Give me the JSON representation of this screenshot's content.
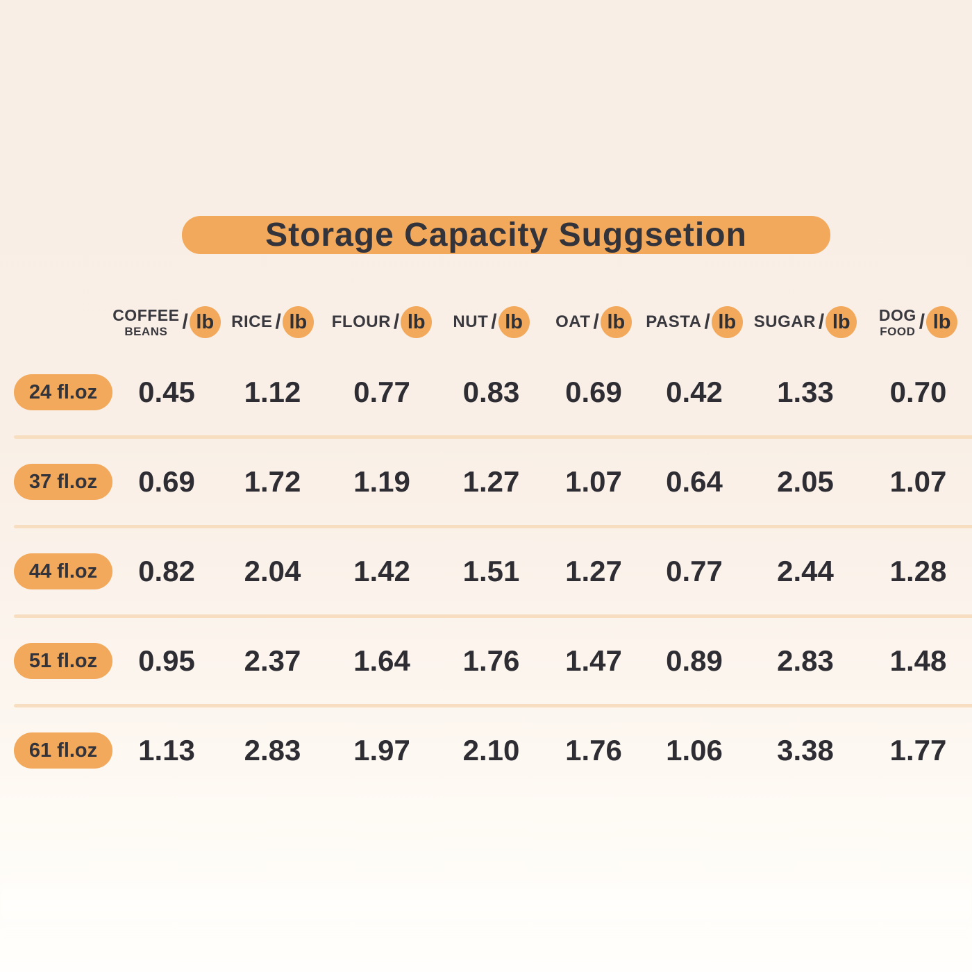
{
  "title": "Storage Capacity Suggsetion",
  "table": {
    "unit": "lb",
    "columns": [
      {
        "line1": "COFFEE",
        "line2": "BEANS",
        "slash": "/"
      },
      {
        "line1": "RICE",
        "line2": "",
        "slash": "/"
      },
      {
        "line1": "FLOUR",
        "line2": "",
        "slash": "/"
      },
      {
        "line1": "NUT",
        "line2": "",
        "slash": "/"
      },
      {
        "line1": "OAT",
        "line2": "",
        "slash": "/"
      },
      {
        "line1": "PASTA",
        "line2": "",
        "slash": "/"
      },
      {
        "line1": "SUGAR",
        "line2": "",
        "slash": "/"
      },
      {
        "line1": "DOG",
        "line2": "FOOD",
        "slash": "/"
      }
    ],
    "rows": [
      {
        "label": "24 fl.oz",
        "values": [
          "0.45",
          "1.12",
          "0.77",
          "0.83",
          "0.69",
          "0.42",
          "1.33",
          "0.70"
        ]
      },
      {
        "label": "37 fl.oz",
        "values": [
          "0.69",
          "1.72",
          "1.19",
          "1.27",
          "1.07",
          "0.64",
          "2.05",
          "1.07"
        ]
      },
      {
        "label": "44 fl.oz",
        "values": [
          "0.82",
          "2.04",
          "1.42",
          "1.51",
          "1.27",
          "0.77",
          "2.44",
          "1.28"
        ]
      },
      {
        "label": "51 fl.oz",
        "values": [
          "0.95",
          "2.37",
          "1.64",
          "1.76",
          "1.47",
          "0.89",
          "2.83",
          "1.48"
        ]
      },
      {
        "label": "61 fl.oz",
        "values": [
          "1.13",
          "2.83",
          "1.97",
          "2.10",
          "1.76",
          "1.06",
          "3.38",
          "1.77"
        ]
      }
    ]
  },
  "chart_data": {
    "type": "table",
    "title": "Storage Capacity Suggsetion",
    "unit": "lb",
    "columns": [
      "COFFEE BEANS /lb",
      "RICE /lb",
      "FLOUR /lb",
      "NUT /lb",
      "OAT /lb",
      "PASTA /lb",
      "SUGAR /lb",
      "DOG FOOD /lb"
    ],
    "row_labels": [
      "24 fl.oz",
      "37 fl.oz",
      "44 fl.oz",
      "51 fl.oz",
      "61 fl.oz"
    ],
    "values": [
      [
        0.45,
        1.12,
        0.77,
        0.83,
        0.69,
        0.42,
        1.33,
        0.7
      ],
      [
        0.69,
        1.72,
        1.19,
        1.27,
        1.07,
        0.64,
        2.05,
        1.07
      ],
      [
        0.82,
        2.04,
        1.42,
        1.51,
        1.27,
        0.77,
        2.44,
        1.28
      ],
      [
        0.95,
        2.37,
        1.64,
        1.76,
        1.47,
        0.89,
        2.83,
        1.48
      ],
      [
        1.13,
        2.83,
        1.97,
        2.1,
        1.76,
        1.06,
        3.38,
        1.77
      ]
    ]
  },
  "colors": {
    "accent": "#F2A95B",
    "heading_text": "#33333B",
    "value_text": "#2D2D33",
    "divider": "#F8DEC0",
    "background_top": "#F9EEE5",
    "background_bottom": "#FFFEFC"
  }
}
